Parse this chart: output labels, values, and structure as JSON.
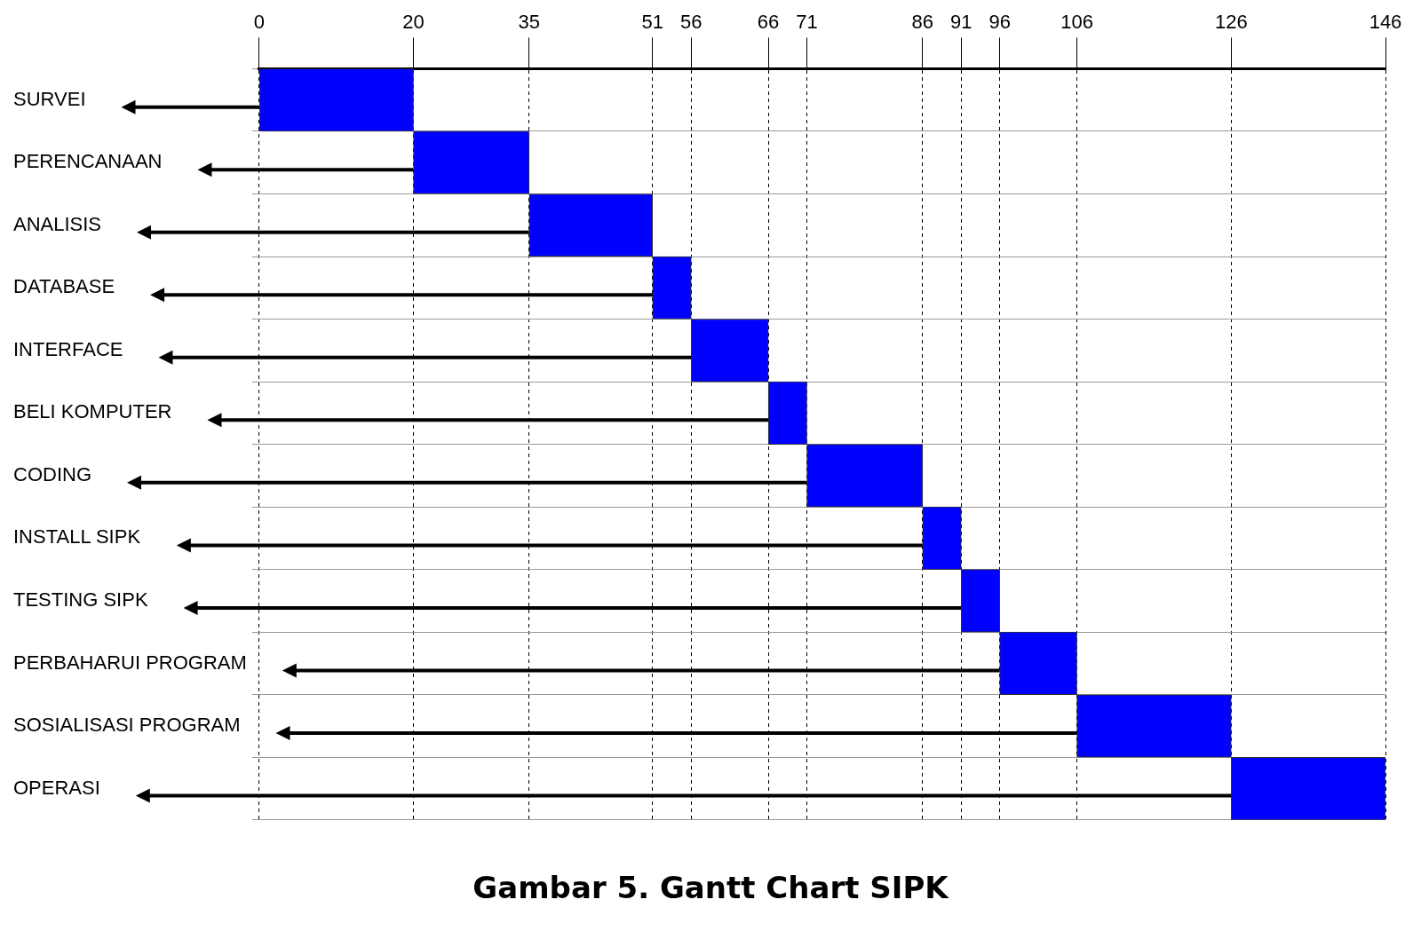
{
  "chart_data": {
    "type": "bar",
    "orientation": "horizontal",
    "title": "Gambar 5. Gantt Chart SIPK",
    "categories": [
      "SURVEI",
      "PERENCANAAN",
      "ANALISIS",
      "DATABASE",
      "INTERFACE",
      "BELI KOMPUTER",
      "CODING",
      "INSTALL SIPK",
      "TESTING SIPK",
      "PERBAHARUI PROGRAM",
      "SOSIALISASI PROGRAM",
      "OPERASI"
    ],
    "base": [
      0,
      20,
      35,
      51,
      56,
      66,
      71,
      86,
      91,
      96,
      106,
      126
    ],
    "values": [
      20,
      15,
      16,
      5,
      10,
      5,
      15,
      5,
      5,
      10,
      20,
      20
    ],
    "color": "#0000ff",
    "xlim": [
      0,
      146
    ],
    "xticks": [
      0,
      20,
      35,
      51,
      56,
      66,
      71,
      86,
      91,
      96,
      106,
      126,
      146
    ],
    "grid": true,
    "line_style": "dashed"
  }
}
